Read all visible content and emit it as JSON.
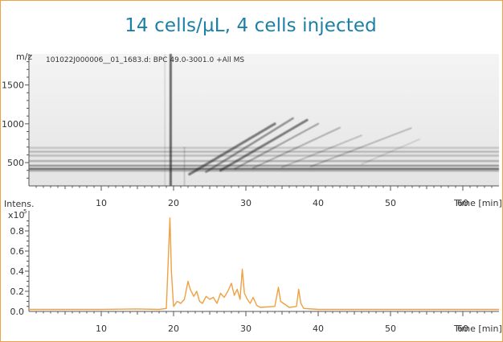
{
  "title": "14 cells/µL, 4 cells injected",
  "colors": {
    "frame": "#f0a04b",
    "title": "#1b7fa6",
    "trace": "#f0a043",
    "axis": "#555555",
    "heatmap_dark": "#222222"
  },
  "chart_data": [
    {
      "type": "heatmap",
      "annotation": "101022J000006__01_1683.d: BPC 49.0-3001.0 +All MS",
      "ylabel": "m/z",
      "xlabel": "Time [min]",
      "xlim": [
        0,
        65
      ],
      "ylim": [
        200,
        1900
      ],
      "x_ticks": [
        10,
        20,
        30,
        40,
        50,
        60
      ],
      "y_ticks": [
        500,
        1000,
        1500
      ],
      "grid": false
    },
    {
      "type": "line",
      "ylabel": "Intens.",
      "y_scale_label": "x10",
      "y_scale_exponent": "5",
      "xlabel": "Time [min]",
      "xlim": [
        0,
        65
      ],
      "ylim": [
        0,
        1.0
      ],
      "x_ticks": [
        10,
        20,
        30,
        40,
        50,
        60
      ],
      "y_ticks": [
        "0.0",
        "0.2",
        "0.4",
        "0.6",
        "0.8"
      ],
      "y_tick_values": [
        0,
        0.2,
        0.4,
        0.6,
        0.8
      ],
      "series": [
        {
          "x": [
            0,
            5,
            10,
            15,
            18,
            19,
            19.5,
            19.7,
            20,
            20.5,
            21,
            21.5,
            22,
            22.3,
            22.8,
            23.2,
            23.6,
            24,
            24.5,
            25,
            25.5,
            26,
            26.5,
            27,
            27.5,
            28,
            28.4,
            28.8,
            29.2,
            29.5,
            29.8,
            30.2,
            30.6,
            31,
            31.5,
            32,
            34,
            34.5,
            34.8,
            35.2,
            36,
            37,
            37.3,
            37.6,
            38,
            40,
            45,
            50,
            55,
            60,
            65
          ],
          "y": [
            0.02,
            0.02,
            0.02,
            0.025,
            0.02,
            0.03,
            0.93,
            0.4,
            0.05,
            0.1,
            0.08,
            0.12,
            0.3,
            0.22,
            0.15,
            0.2,
            0.1,
            0.08,
            0.15,
            0.12,
            0.14,
            0.08,
            0.18,
            0.14,
            0.2,
            0.28,
            0.16,
            0.22,
            0.12,
            0.42,
            0.18,
            0.12,
            0.08,
            0.14,
            0.06,
            0.04,
            0.05,
            0.24,
            0.1,
            0.08,
            0.04,
            0.05,
            0.22,
            0.08,
            0.03,
            0.02,
            0.02,
            0.02,
            0.02,
            0.02,
            0.02
          ]
        }
      ]
    }
  ]
}
